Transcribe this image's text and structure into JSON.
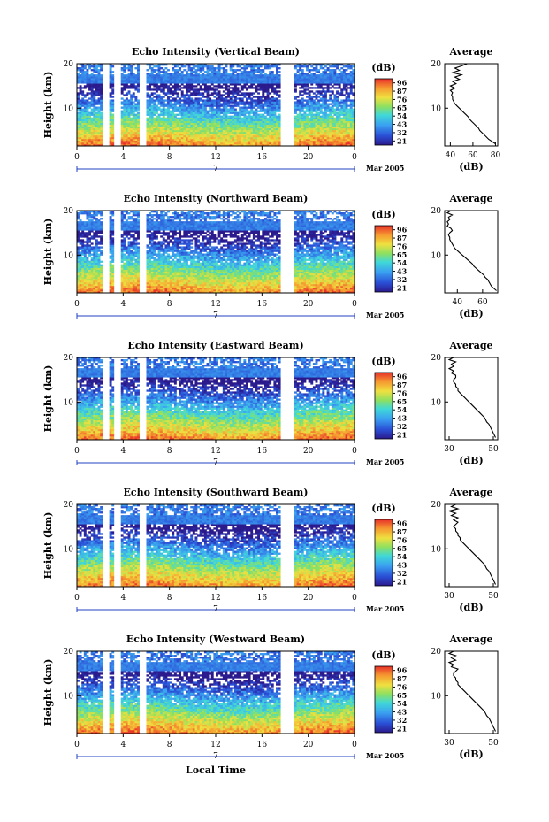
{
  "chart_data": [
    {
      "type": "heatmap",
      "title": "Echo Intensity (Vertical Beam)",
      "ylabel": "Height (km)",
      "x_ticks": [
        "0",
        "4",
        "8",
        "12",
        "16",
        "20",
        "0"
      ],
      "y_ticks": [
        "20",
        "10"
      ],
      "xlim": [
        0,
        24
      ],
      "ylim": [
        1.5,
        20
      ],
      "date_marker": "7",
      "date_label": "Mar 2005",
      "colorbar": {
        "unit": "(dB)",
        "ticks": [
          "96",
          "87",
          "76",
          "65",
          "54",
          "43",
          "32",
          "21"
        ]
      },
      "gaps": [
        [
          2.3,
          2.8
        ],
        [
          3.3,
          3.7
        ],
        [
          5.4,
          5.9
        ],
        [
          17.7,
          18.8
        ]
      ],
      "profile": {
        "title": "Average",
        "xlabel": "(dB)",
        "x_ticks": [
          "40",
          "60",
          "80"
        ],
        "xlim": [
          35,
          82
        ],
        "y_ticks": [
          "20",
          "10"
        ],
        "points": [
          [
            55,
            20
          ],
          [
            50,
            19.5
          ],
          [
            44,
            19
          ],
          [
            48,
            18.5
          ],
          [
            42,
            18
          ],
          [
            50,
            17.5
          ],
          [
            44,
            17
          ],
          [
            48,
            16.5
          ],
          [
            42,
            16
          ],
          [
            45,
            15.5
          ],
          [
            40,
            15
          ],
          [
            44,
            14.5
          ],
          [
            40,
            14
          ],
          [
            42,
            13.5
          ],
          [
            41,
            13
          ],
          [
            42,
            12.5
          ],
          [
            42,
            12
          ],
          [
            43,
            11.5
          ],
          [
            44,
            11
          ],
          [
            46,
            10.5
          ],
          [
            48,
            10
          ],
          [
            50,
            9.5
          ],
          [
            52,
            9
          ],
          [
            54,
            8.5
          ],
          [
            56,
            8
          ],
          [
            57,
            7.5
          ],
          [
            59,
            7
          ],
          [
            61,
            6.5
          ],
          [
            63,
            6
          ],
          [
            65,
            5.5
          ],
          [
            66,
            5
          ],
          [
            68,
            4.5
          ],
          [
            70,
            4
          ],
          [
            72,
            3.5
          ],
          [
            74,
            3
          ],
          [
            77,
            2.5
          ],
          [
            80,
            2
          ]
        ]
      }
    },
    {
      "type": "heatmap",
      "title": "Echo Intensity (Northward Beam)",
      "ylabel": "Height (km)",
      "x_ticks": [
        "0",
        "4",
        "8",
        "12",
        "16",
        "20",
        "0"
      ],
      "y_ticks": [
        "20",
        "10"
      ],
      "xlim": [
        0,
        24
      ],
      "ylim": [
        1.5,
        20
      ],
      "date_marker": "7",
      "date_label": "Mar 2005",
      "colorbar": {
        "unit": "(dB)",
        "ticks": [
          "96",
          "87",
          "76",
          "65",
          "54",
          "43",
          "32",
          "21"
        ]
      },
      "gaps": [
        [
          2.3,
          2.8
        ],
        [
          3.3,
          3.7
        ],
        [
          5.4,
          5.9
        ],
        [
          17.7,
          18.8
        ]
      ],
      "profile": {
        "title": "Average",
        "xlabel": "(dB)",
        "x_ticks": [
          "40",
          "60"
        ],
        "xlim": [
          30,
          72
        ],
        "y_ticks": [
          "20",
          "10"
        ],
        "points": [
          [
            35,
            20
          ],
          [
            32,
            19.5
          ],
          [
            36,
            19
          ],
          [
            33,
            18.5
          ],
          [
            34,
            18
          ],
          [
            32,
            17.5
          ],
          [
            33,
            17
          ],
          [
            32,
            16.5
          ],
          [
            35,
            16
          ],
          [
            36,
            15.5
          ],
          [
            34,
            15
          ],
          [
            33,
            14.5
          ],
          [
            34,
            14
          ],
          [
            34,
            13.5
          ],
          [
            35,
            13
          ],
          [
            36,
            12.5
          ],
          [
            37,
            12
          ],
          [
            38,
            11.5
          ],
          [
            40,
            11
          ],
          [
            42,
            10.5
          ],
          [
            44,
            10
          ],
          [
            46,
            9.5
          ],
          [
            48,
            9
          ],
          [
            50,
            8.5
          ],
          [
            52,
            8
          ],
          [
            53,
            7.5
          ],
          [
            55,
            7
          ],
          [
            57,
            6.5
          ],
          [
            59,
            6
          ],
          [
            61,
            5.5
          ],
          [
            62,
            5
          ],
          [
            64,
            4.5
          ],
          [
            65,
            4
          ],
          [
            66,
            3.5
          ],
          [
            67,
            3
          ],
          [
            69,
            2.5
          ],
          [
            71,
            2
          ]
        ]
      }
    },
    {
      "type": "heatmap",
      "title": "Echo Intensity (Eastward Beam)",
      "ylabel": "Height (km)",
      "x_ticks": [
        "0",
        "4",
        "8",
        "12",
        "16",
        "20",
        "0"
      ],
      "y_ticks": [
        "20",
        "10"
      ],
      "xlim": [
        0,
        24
      ],
      "ylim": [
        1.5,
        20
      ],
      "date_marker": "7",
      "date_label": "Mar 2005",
      "colorbar": {
        "unit": "(dB)",
        "ticks": [
          "96",
          "87",
          "76",
          "65",
          "54",
          "43",
          "32",
          "21"
        ]
      },
      "gaps": [
        [
          2.3,
          2.8
        ],
        [
          3.3,
          3.7
        ],
        [
          5.4,
          5.9
        ],
        [
          17.7,
          18.8
        ]
      ],
      "profile": {
        "title": "Average",
        "xlabel": "(dB)",
        "x_ticks": [
          "30",
          "50"
        ],
        "xlim": [
          28,
          52
        ],
        "y_ticks": [
          "20",
          "10"
        ],
        "points": [
          [
            32,
            20
          ],
          [
            30,
            19.5
          ],
          [
            33,
            19
          ],
          [
            31,
            18.5
          ],
          [
            32,
            18
          ],
          [
            30,
            17.5
          ],
          [
            32,
            17
          ],
          [
            31,
            16.5
          ],
          [
            33,
            16
          ],
          [
            33,
            15.5
          ],
          [
            32,
            15
          ],
          [
            32,
            14.5
          ],
          [
            33,
            14
          ],
          [
            33,
            13.5
          ],
          [
            34,
            13
          ],
          [
            34,
            12.5
          ],
          [
            35,
            12
          ],
          [
            36,
            11.5
          ],
          [
            37,
            11
          ],
          [
            38,
            10.5
          ],
          [
            39,
            10
          ],
          [
            40,
            9.5
          ],
          [
            41,
            9
          ],
          [
            42,
            8.5
          ],
          [
            43,
            8
          ],
          [
            44,
            7.5
          ],
          [
            45,
            7
          ],
          [
            46,
            6.5
          ],
          [
            46.5,
            6
          ],
          [
            47,
            5.5
          ],
          [
            48,
            5
          ],
          [
            48.5,
            4.5
          ],
          [
            49,
            4
          ],
          [
            49.5,
            3.5
          ],
          [
            50,
            3
          ],
          [
            50.5,
            2.5
          ],
          [
            51,
            2
          ]
        ]
      }
    },
    {
      "type": "heatmap",
      "title": "Echo Intensity (Southward Beam)",
      "ylabel": "Height (km)",
      "x_ticks": [
        "0",
        "4",
        "8",
        "12",
        "16",
        "20",
        "0"
      ],
      "y_ticks": [
        "20",
        "10"
      ],
      "xlim": [
        0,
        24
      ],
      "ylim": [
        1.5,
        20
      ],
      "date_marker": "7",
      "date_label": "Mar 2005",
      "colorbar": {
        "unit": "(dB)",
        "ticks": [
          "96",
          "87",
          "76",
          "65",
          "54",
          "43",
          "32",
          "21"
        ]
      },
      "gaps": [
        [
          2.3,
          2.8
        ],
        [
          3.3,
          3.7
        ],
        [
          5.4,
          5.9
        ],
        [
          17.7,
          18.8
        ]
      ],
      "profile": {
        "title": "Average",
        "xlabel": "(dB)",
        "x_ticks": [
          "30",
          "50"
        ],
        "xlim": [
          28,
          52
        ],
        "y_ticks": [
          "20",
          "10"
        ],
        "points": [
          [
            33,
            20
          ],
          [
            31,
            19.5
          ],
          [
            34,
            19
          ],
          [
            30,
            18.5
          ],
          [
            33,
            18
          ],
          [
            31,
            17.5
          ],
          [
            34,
            17
          ],
          [
            32,
            16.5
          ],
          [
            34,
            16
          ],
          [
            33,
            15.5
          ],
          [
            32,
            15
          ],
          [
            33,
            14.5
          ],
          [
            33,
            14
          ],
          [
            34,
            13.5
          ],
          [
            34,
            13
          ],
          [
            35,
            12.5
          ],
          [
            35,
            12
          ],
          [
            36,
            11.5
          ],
          [
            37,
            11
          ],
          [
            38,
            10.5
          ],
          [
            39,
            10
          ],
          [
            40,
            9.5
          ],
          [
            41,
            9
          ],
          [
            42,
            8.5
          ],
          [
            43,
            8
          ],
          [
            44,
            7.5
          ],
          [
            45,
            7
          ],
          [
            46,
            6.5
          ],
          [
            46.5,
            6
          ],
          [
            47,
            5.5
          ],
          [
            48,
            5
          ],
          [
            48.5,
            4.5
          ],
          [
            49,
            4
          ],
          [
            49.5,
            3.5
          ],
          [
            50,
            3
          ],
          [
            50.5,
            2.5
          ],
          [
            51,
            2
          ]
        ]
      }
    },
    {
      "type": "heatmap",
      "title": "Echo Intensity (Westward Beam)",
      "ylabel": "Height (km)",
      "xlabel": "Local Time",
      "x_ticks": [
        "0",
        "4",
        "8",
        "12",
        "16",
        "20",
        "0"
      ],
      "y_ticks": [
        "20",
        "10"
      ],
      "xlim": [
        0,
        24
      ],
      "ylim": [
        1.5,
        20
      ],
      "date_marker": "7",
      "date_label": "Mar 2005",
      "colorbar": {
        "unit": "(dB)",
        "ticks": [
          "96",
          "87",
          "76",
          "65",
          "54",
          "43",
          "32",
          "21"
        ]
      },
      "gaps": [
        [
          2.3,
          2.8
        ],
        [
          3.3,
          3.7
        ],
        [
          5.4,
          5.9
        ],
        [
          17.7,
          18.8
        ]
      ],
      "profile": {
        "title": "Average",
        "xlabel": "(dB)",
        "x_ticks": [
          "30",
          "50"
        ],
        "xlim": [
          28,
          52
        ],
        "y_ticks": [
          "20",
          "10"
        ],
        "points": [
          [
            32,
            20
          ],
          [
            30,
            19.5
          ],
          [
            33,
            19
          ],
          [
            31,
            18.5
          ],
          [
            33,
            18
          ],
          [
            30,
            17.5
          ],
          [
            32,
            17
          ],
          [
            31,
            16.5
          ],
          [
            34,
            16
          ],
          [
            33,
            15.5
          ],
          [
            32,
            15
          ],
          [
            32,
            14.5
          ],
          [
            33,
            14
          ],
          [
            33,
            13.5
          ],
          [
            34,
            13
          ],
          [
            34,
            12.5
          ],
          [
            35,
            12
          ],
          [
            36,
            11.5
          ],
          [
            37,
            11
          ],
          [
            38,
            10.5
          ],
          [
            39,
            10
          ],
          [
            40,
            9.5
          ],
          [
            41,
            9
          ],
          [
            42,
            8.5
          ],
          [
            43,
            8
          ],
          [
            44,
            7.5
          ],
          [
            45,
            7
          ],
          [
            46,
            6.5
          ],
          [
            46.5,
            6
          ],
          [
            47,
            5.5
          ],
          [
            48,
            5
          ],
          [
            48.5,
            4.5
          ],
          [
            49,
            4
          ],
          [
            49.5,
            3.5
          ],
          [
            50,
            3
          ],
          [
            50.5,
            2.5
          ],
          [
            51,
            2
          ]
        ]
      }
    }
  ]
}
